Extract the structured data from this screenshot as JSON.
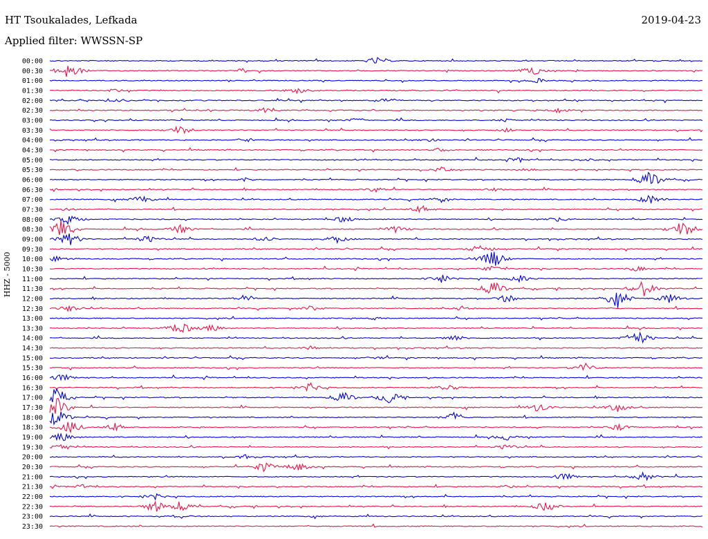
{
  "header": {
    "station": "HT Tsoukalades, Lefkada",
    "date": "2019-04-23",
    "filter": "Applied filter: WWSSN-SP"
  },
  "chart_data": {
    "type": "line",
    "title": "HT Tsoukalades, Lefkada",
    "ylabel": "HHZ - 5000",
    "colors": [
      "#0000dd",
      "#ee1144"
    ],
    "grid": false,
    "rows": [
      {
        "label": "00:00",
        "events": [
          [
            0.5,
            6
          ]
        ]
      },
      {
        "label": "00:30",
        "events": [
          [
            0.03,
            14
          ],
          [
            0.74,
            7
          ]
        ]
      },
      {
        "label": "01:00",
        "events": [
          [
            0.75,
            4
          ]
        ]
      },
      {
        "label": "01:30",
        "events": [
          [
            0.38,
            5
          ],
          [
            0.1,
            3
          ]
        ]
      },
      {
        "label": "02:00",
        "events": [
          [
            0.1,
            5
          ],
          [
            0.52,
            4
          ]
        ]
      },
      {
        "label": "02:30",
        "events": [
          [
            0.33,
            4
          ],
          [
            0.78,
            4
          ]
        ]
      },
      {
        "label": "03:00",
        "events": [
          [
            0.47,
            4
          ],
          [
            0.7,
            3
          ]
        ]
      },
      {
        "label": "03:30",
        "events": [
          [
            0.2,
            8
          ],
          [
            0.7,
            3
          ]
        ]
      },
      {
        "label": "04:00",
        "events": [
          [
            0.3,
            4
          ],
          [
            0.58,
            3
          ]
        ]
      },
      {
        "label": "04:30",
        "events": [
          [
            0.6,
            3
          ]
        ]
      },
      {
        "label": "05:00",
        "events": [
          [
            0.72,
            4
          ],
          [
            0.82,
            3
          ]
        ]
      },
      {
        "label": "05:30",
        "events": [
          [
            0.6,
            4
          ],
          [
            0.73,
            3
          ]
        ]
      },
      {
        "label": "06:00",
        "events": [
          [
            0.92,
            14
          ],
          [
            0.3,
            3
          ]
        ]
      },
      {
        "label": "06:30",
        "events": [
          [
            0.5,
            4
          ],
          [
            0.68,
            3
          ]
        ]
      },
      {
        "label": "07:00",
        "events": [
          [
            0.14,
            6
          ],
          [
            0.6,
            5
          ],
          [
            0.92,
            8
          ]
        ]
      },
      {
        "label": "07:30",
        "events": [
          [
            0.57,
            6
          ],
          [
            0.03,
            3
          ]
        ]
      },
      {
        "label": "08:00",
        "events": [
          [
            0.03,
            8
          ],
          [
            0.45,
            5
          ],
          [
            0.78,
            4
          ]
        ]
      },
      {
        "label": "08:30",
        "events": [
          [
            0.02,
            16
          ],
          [
            0.2,
            7
          ],
          [
            0.53,
            6
          ],
          [
            0.97,
            14
          ]
        ]
      },
      {
        "label": "09:00",
        "events": [
          [
            0.03,
            10
          ],
          [
            0.15,
            6
          ],
          [
            0.33,
            5
          ],
          [
            0.44,
            6
          ]
        ]
      },
      {
        "label": "09:30",
        "events": [
          [
            0.66,
            8
          ]
        ]
      },
      {
        "label": "10:00",
        "events": [
          [
            0.01,
            4
          ],
          [
            0.68,
            14
          ]
        ]
      },
      {
        "label": "10:30",
        "events": [
          [
            0.68,
            6
          ],
          [
            0.9,
            4
          ]
        ]
      },
      {
        "label": "11:00",
        "events": [
          [
            0.6,
            7
          ],
          [
            0.72,
            6
          ]
        ]
      },
      {
        "label": "11:30",
        "events": [
          [
            0.68,
            12
          ],
          [
            0.91,
            12
          ]
        ]
      },
      {
        "label": "12:00",
        "events": [
          [
            0.3,
            6
          ],
          [
            0.7,
            6
          ],
          [
            0.87,
            14
          ],
          [
            0.95,
            8
          ]
        ]
      },
      {
        "label": "12:30",
        "events": [
          [
            0.03,
            5
          ],
          [
            0.4,
            5
          ],
          [
            0.63,
            4
          ]
        ]
      },
      {
        "label": "13:00",
        "events": [
          [
            0.5,
            3
          ]
        ]
      },
      {
        "label": "13:30",
        "events": [
          [
            0.2,
            10
          ],
          [
            0.25,
            6
          ]
        ]
      },
      {
        "label": "14:00",
        "events": [
          [
            0.62,
            5
          ],
          [
            0.9,
            12
          ]
        ]
      },
      {
        "label": "14:30",
        "events": [
          [
            0.4,
            3
          ]
        ]
      },
      {
        "label": "15:00",
        "events": [
          [
            0.5,
            3
          ]
        ]
      },
      {
        "label": "15:30",
        "events": [
          [
            0.82,
            7
          ]
        ]
      },
      {
        "label": "16:00",
        "events": [
          [
            0.02,
            6
          ]
        ]
      },
      {
        "label": "16:30",
        "events": [
          [
            0.4,
            7
          ],
          [
            0.61,
            7
          ]
        ]
      },
      {
        "label": "17:00",
        "events": [
          [
            0.01,
            16
          ],
          [
            0.45,
            9
          ],
          [
            0.52,
            10
          ]
        ]
      },
      {
        "label": "17:30",
        "events": [
          [
            0.01,
            16
          ],
          [
            0.75,
            8
          ],
          [
            0.87,
            7
          ]
        ]
      },
      {
        "label": "18:00",
        "events": [
          [
            0.01,
            14
          ],
          [
            0.62,
            8
          ]
        ]
      },
      {
        "label": "18:30",
        "events": [
          [
            0.03,
            10
          ],
          [
            0.1,
            6
          ],
          [
            0.87,
            6
          ]
        ]
      },
      {
        "label": "19:00",
        "events": [
          [
            0.02,
            8
          ],
          [
            0.7,
            5
          ]
        ]
      },
      {
        "label": "19:30",
        "events": [
          [
            0.02,
            6
          ],
          [
            0.7,
            5
          ]
        ]
      },
      {
        "label": "20:00",
        "events": [
          [
            0.3,
            4
          ]
        ]
      },
      {
        "label": "20:30",
        "events": [
          [
            0.33,
            8
          ],
          [
            0.38,
            7
          ]
        ]
      },
      {
        "label": "21:00",
        "events": [
          [
            0.79,
            6
          ],
          [
            0.91,
            7
          ]
        ]
      },
      {
        "label": "21:30",
        "events": [
          [
            0.05,
            5
          ],
          [
            0.7,
            3
          ]
        ]
      },
      {
        "label": "22:00",
        "events": [
          [
            0.16,
            5
          ]
        ]
      },
      {
        "label": "22:30",
        "events": [
          [
            0.16,
            10
          ],
          [
            0.2,
            8
          ],
          [
            0.76,
            8
          ]
        ]
      },
      {
        "label": "23:00",
        "events": [
          [
            0.2,
            4
          ]
        ]
      },
      {
        "label": "23:30",
        "events": []
      }
    ]
  }
}
